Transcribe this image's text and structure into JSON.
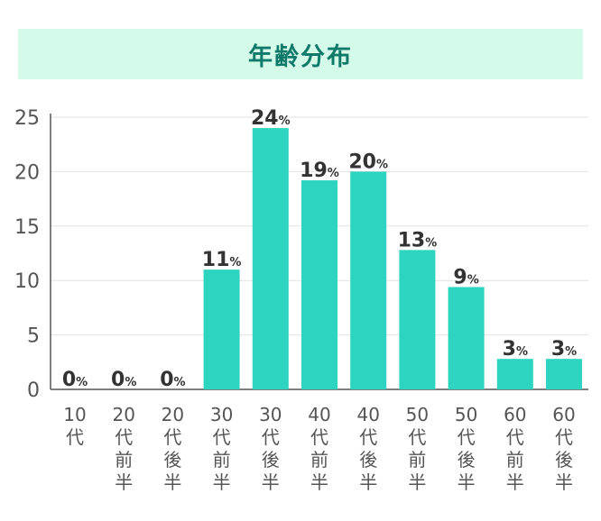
{
  "chart_data": {
    "type": "bar",
    "title": "年齢分布",
    "categories": [
      "10代",
      "20代前半",
      "20代後半",
      "30代前半",
      "30代後半",
      "40代前半",
      "40代後半",
      "50代前半",
      "50代後半",
      "60代前半",
      "60代後半"
    ],
    "values": [
      0,
      0,
      0,
      11,
      24,
      19,
      20,
      13,
      9,
      3,
      3
    ],
    "bar_values": [
      0,
      0,
      0,
      11,
      24,
      19.2,
      20,
      12.8,
      9.4,
      2.8,
      2.8
    ],
    "value_suffix": "%",
    "yticks": [
      0,
      5,
      10,
      15,
      20,
      25
    ],
    "ylim": [
      0,
      25
    ],
    "grid": true,
    "bar_color": "#2dd4bf",
    "xlabel": "",
    "ylabel": ""
  }
}
